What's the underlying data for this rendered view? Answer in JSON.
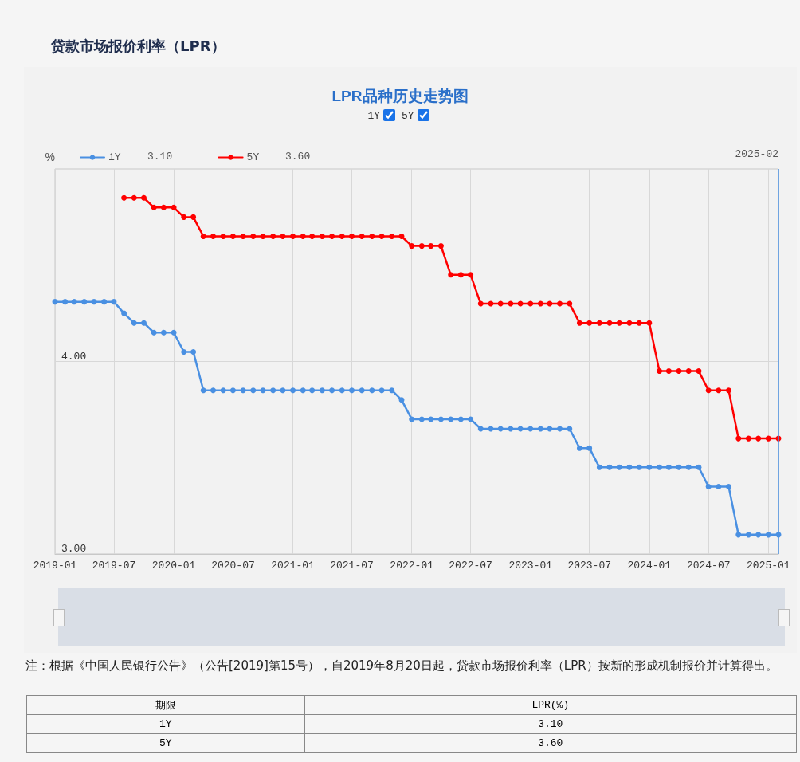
{
  "chart_data": {
    "type": "line",
    "title": "贷款市场报价利率（LPR）",
    "subtitle": "LPR品种历史走势图",
    "ylabel": "%",
    "annotations": [
      "注：根据《中国人民银行公告》（公告[2019]第15号），自2019年8月20日起，贷款市场报价利率（LPR）按新的形成机制报价并计算得出。",
      "期限",
      "LPR(%)",
      "3.10",
      "3.60"
    ],
    "x": [
      "2019-01",
      "2019-02",
      "2019-03",
      "2019-04",
      "2019-05",
      "2019-06",
      "2019-07",
      "2019-08",
      "2019-09",
      "2019-10",
      "2019-11",
      "2019-12",
      "2020-01",
      "2020-02",
      "2020-03",
      "2020-04",
      "2020-05",
      "2020-06",
      "2020-07",
      "2020-08",
      "2020-09",
      "2020-10",
      "2020-11",
      "2020-12",
      "2021-01",
      "2021-02",
      "2021-03",
      "2021-04",
      "2021-05",
      "2021-06",
      "2021-07",
      "2021-08",
      "2021-09",
      "2021-10",
      "2021-11",
      "2021-12",
      "2022-01",
      "2022-02",
      "2022-03",
      "2022-04",
      "2022-05",
      "2022-06",
      "2022-07",
      "2022-08",
      "2022-09",
      "2022-10",
      "2022-11",
      "2022-12",
      "2023-01",
      "2023-02",
      "2023-03",
      "2023-04",
      "2023-05",
      "2023-06",
      "2023-07",
      "2023-08",
      "2023-09",
      "2023-10",
      "2023-11",
      "2023-12",
      "2024-01",
      "2024-02",
      "2024-03",
      "2024-04",
      "2024-05",
      "2024-06",
      "2024-07",
      "2024-08",
      "2024-09",
      "2024-10",
      "2024-11",
      "2024-12",
      "2025-01",
      "2025-02"
    ],
    "series": [
      {
        "name": "1Y",
        "color": "#4a90e2",
        "values": [
          4.31,
          4.31,
          4.31,
          4.31,
          4.31,
          4.31,
          4.31,
          4.25,
          4.2,
          4.2,
          4.15,
          4.15,
          4.15,
          4.05,
          4.05,
          3.85,
          3.85,
          3.85,
          3.85,
          3.85,
          3.85,
          3.85,
          3.85,
          3.85,
          3.85,
          3.85,
          3.85,
          3.85,
          3.85,
          3.85,
          3.85,
          3.85,
          3.85,
          3.85,
          3.85,
          3.8,
          3.7,
          3.7,
          3.7,
          3.7,
          3.7,
          3.7,
          3.7,
          3.65,
          3.65,
          3.65,
          3.65,
          3.65,
          3.65,
          3.65,
          3.65,
          3.65,
          3.65,
          3.55,
          3.55,
          3.45,
          3.45,
          3.45,
          3.45,
          3.45,
          3.45,
          3.45,
          3.45,
          3.45,
          3.45,
          3.45,
          3.35,
          3.35,
          3.35,
          3.1,
          3.1,
          3.1,
          3.1,
          3.1
        ]
      },
      {
        "name": "5Y",
        "color": "#ff0000",
        "values": [
          null,
          null,
          null,
          null,
          null,
          null,
          null,
          4.85,
          4.85,
          4.85,
          4.8,
          4.8,
          4.8,
          4.75,
          4.75,
          4.65,
          4.65,
          4.65,
          4.65,
          4.65,
          4.65,
          4.65,
          4.65,
          4.65,
          4.65,
          4.65,
          4.65,
          4.65,
          4.65,
          4.65,
          4.65,
          4.65,
          4.65,
          4.65,
          4.65,
          4.65,
          4.6,
          4.6,
          4.6,
          4.6,
          4.45,
          4.45,
          4.45,
          4.3,
          4.3,
          4.3,
          4.3,
          4.3,
          4.3,
          4.3,
          4.3,
          4.3,
          4.3,
          4.2,
          4.2,
          4.2,
          4.2,
          4.2,
          4.2,
          4.2,
          4.2,
          3.95,
          3.95,
          3.95,
          3.95,
          3.95,
          3.85,
          3.85,
          3.85,
          3.6,
          3.6,
          3.6,
          3.6,
          3.6
        ]
      }
    ],
    "xlim": [
      "2019-01",
      "2025-02"
    ],
    "xticks": [
      "2019-01",
      "2019-07",
      "2020-01",
      "2020-07",
      "2021-01",
      "2021-07",
      "2022-01",
      "2022-07",
      "2023-01",
      "2023-07",
      "2024-01",
      "2024-07",
      "2025-01"
    ],
    "ylim": [
      3,
      5
    ],
    "yticks": [
      {
        "value": 3,
        "label": "3.00"
      },
      {
        "value": 4,
        "label": "4.00"
      }
    ],
    "ref_lines": [
      {
        "axis": "x",
        "value": "2025-02",
        "label": "2025-02",
        "color": "#4a90e2"
      }
    ],
    "grid": true,
    "legend": "top left",
    "marker": "circle",
    "line_style": "solid"
  }
}
